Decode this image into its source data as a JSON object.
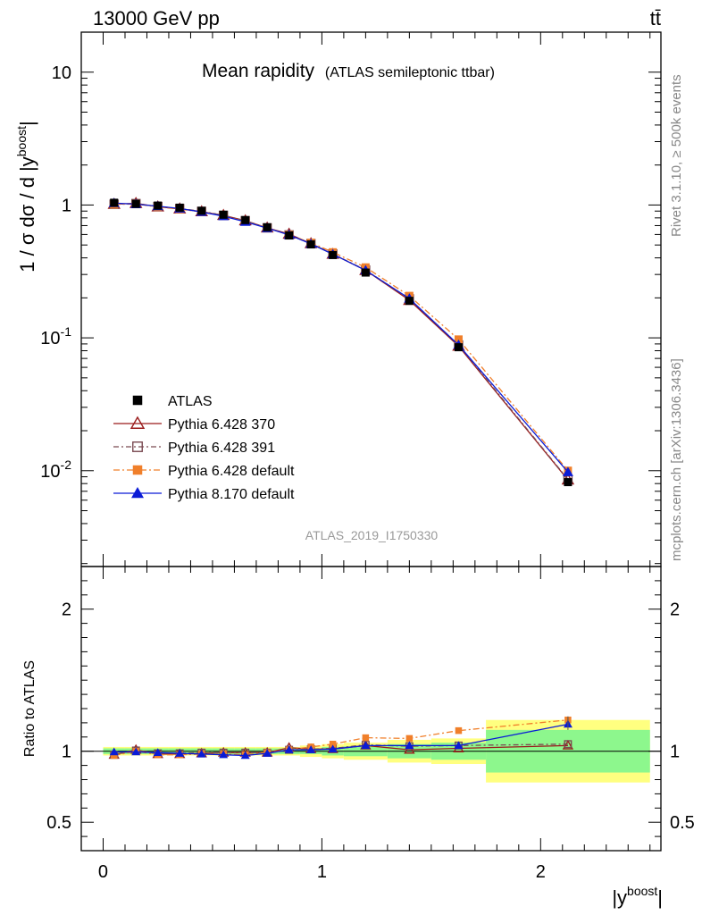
{
  "header": {
    "left": "13000 GeV pp",
    "right": "tt̄"
  },
  "side_text": {
    "rivet": "Rivet 3.1.10, ≥ 500k events",
    "mcplots": "mcplots.cern.ch [arXiv:1306.3436]"
  },
  "chart_data": {
    "type": "line",
    "title": "Mean rapidity",
    "subtitle": "(ATLAS semileptonic ttbar)",
    "analysis_id": "ATLAS_2019_I1750330",
    "xlabel": "|y",
    "xlabel_sup": "boost",
    "xlabel_suffix": "|",
    "ylabel_top": "1 / σ dσ / d |y",
    "ylabel_top_sup": "boost",
    "ylabel_top_suffix": "|",
    "ylabel_bottom": "Ratio to ATLAS",
    "xlim": [
      -0.1,
      2.55
    ],
    "ylim_top": [
      0.0019,
      20
    ],
    "ylim_bottom": [
      0.3,
      2.3
    ],
    "yscale_top": "log",
    "x_ticks": [
      "0",
      "1",
      "2"
    ],
    "y_ticks_top": [
      {
        "base": "10",
        "exp": "-2"
      },
      {
        "base": "10",
        "exp": "-1"
      },
      {
        "base": "1",
        "exp": ""
      },
      {
        "base": "10",
        "exp": ""
      }
    ],
    "y_ticks_bottom": [
      "0.5",
      "1",
      "2"
    ],
    "legend_position": "bottom-left",
    "x": [
      0.05,
      0.15,
      0.25,
      0.35,
      0.45,
      0.55,
      0.65,
      0.75,
      0.85,
      0.95,
      1.05,
      1.2,
      1.4,
      1.625,
      2.125
    ],
    "bin_edges": [
      0,
      0.1,
      0.2,
      0.3,
      0.4,
      0.5,
      0.6,
      0.7,
      0.8,
      0.9,
      1.0,
      1.1,
      1.3,
      1.5,
      1.75,
      2.5
    ],
    "data": {
      "name": "ATLAS",
      "values": [
        1.04,
        1.02,
        0.99,
        0.955,
        0.905,
        0.845,
        0.77,
        0.68,
        0.59,
        0.505,
        0.42,
        0.31,
        0.19,
        0.085,
        0.0082
      ],
      "band_stat": [
        0.02,
        0.02,
        0.02,
        0.02,
        0.02,
        0.02,
        0.02,
        0.02,
        0.02,
        0.02,
        0.03,
        0.035,
        0.05,
        0.06,
        0.15
      ],
      "band_total": [
        0.03,
        0.03,
        0.03,
        0.03,
        0.03,
        0.03,
        0.03,
        0.03,
        0.03,
        0.04,
        0.05,
        0.06,
        0.08,
        0.09,
        0.22
      ]
    },
    "series": [
      {
        "name": "Pythia 6.428 370",
        "color": "#9a1b1b",
        "marker": "triangle-open",
        "dash": "",
        "ratio": [
          0.975,
          1.01,
          0.98,
          0.98,
          0.985,
          0.99,
          0.99,
          0.99,
          1.025,
          1.015,
          1.015,
          1.04,
          1.01,
          1.02,
          1.04
        ]
      },
      {
        "name": "Pythia 6.428 391",
        "color": "#7a4a52",
        "marker": "square-open",
        "dash": "6,3,2,3",
        "ratio": [
          0.975,
          1.005,
          0.985,
          0.985,
          0.99,
          0.99,
          0.99,
          0.99,
          1.01,
          1.015,
          1.02,
          1.045,
          1.035,
          1.04,
          1.05
        ]
      },
      {
        "name": "Pythia 6.428 default",
        "color": "#f07f2a",
        "marker": "square-filled",
        "dash": "7,3,2,3",
        "ratio": [
          0.97,
          1.0,
          0.975,
          0.975,
          0.98,
          0.98,
          0.975,
          0.99,
          1.01,
          1.03,
          1.05,
          1.095,
          1.09,
          1.145,
          1.22
        ]
      },
      {
        "name": "Pythia 8.170 default",
        "color": "#0a1bd6",
        "marker": "triangle-filled",
        "dash": "",
        "ratio": [
          0.995,
          0.995,
          0.99,
          0.985,
          0.98,
          0.975,
          0.97,
          0.985,
          1.01,
          1.01,
          1.015,
          1.04,
          1.04,
          1.04,
          1.19
        ]
      }
    ]
  }
}
